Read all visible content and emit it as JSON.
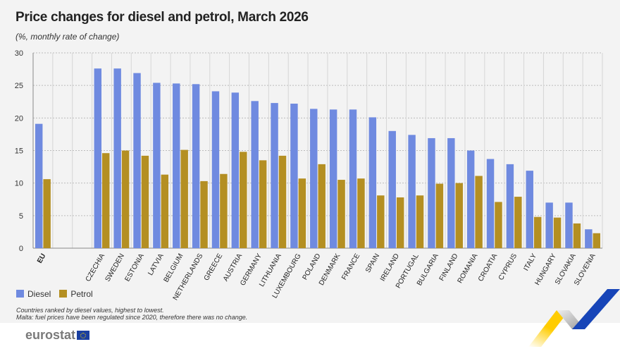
{
  "title": "Price changes for diesel and petrol, March 2026",
  "subtitle": "(%, monthly rate of change)",
  "notes": [
    "Countries ranked by diesel values, highest to lowest.",
    "Malta: fuel prices have been regulated since 2020, therefore there was no change."
  ],
  "logo": "eurostat",
  "colors": {
    "diesel": "#6f8ae0",
    "petrol": "#b48f22",
    "background": "#f3f3f3"
  },
  "chart_data": {
    "type": "bar",
    "title": "Price changes for diesel and petrol, March 2026",
    "ylabel": "(%, monthly rate of change)",
    "ylim": [
      0,
      30
    ],
    "yticks": [
      0,
      5,
      10,
      15,
      20,
      25,
      30
    ],
    "grid": true,
    "legend": "bottom-left",
    "categories": [
      "EU",
      "",
      "CZECHIA",
      "SWEDEN",
      "ESTONIA",
      "LATVIA",
      "BELGIUM",
      "NETHERLANDS",
      "GREECE",
      "AUSTRIA",
      "GERMANY",
      "LITHUANIA",
      "LUXEMBOURG",
      "POLAND",
      "DENMARK",
      "FRANCE",
      "SPAIN",
      "IRELAND",
      "PORTUGAL",
      "BULGARIA",
      "FINLAND",
      "ROMANIA",
      "CROATIA",
      "CYPRUS",
      "ITALY",
      "HUNGARY",
      "SLOVAKIA",
      "SLOVENIA"
    ],
    "series": [
      {
        "name": "Diesel",
        "values": [
          19.1,
          null,
          27.6,
          27.6,
          26.9,
          25.4,
          25.3,
          25.2,
          24.1,
          23.9,
          22.6,
          22.3,
          22.2,
          21.4,
          21.3,
          21.3,
          20.1,
          18.0,
          17.4,
          16.9,
          16.9,
          15.0,
          13.7,
          12.9,
          11.9,
          7.0,
          7.0,
          2.9
        ]
      },
      {
        "name": "Petrol",
        "values": [
          10.6,
          null,
          14.6,
          15.0,
          14.2,
          11.3,
          15.1,
          10.3,
          11.4,
          14.8,
          13.5,
          14.2,
          10.7,
          12.9,
          10.5,
          10.7,
          8.1,
          7.8,
          8.1,
          9.9,
          10.0,
          11.1,
          7.1,
          7.9,
          4.8,
          4.7,
          3.8,
          2.3
        ]
      }
    ]
  }
}
